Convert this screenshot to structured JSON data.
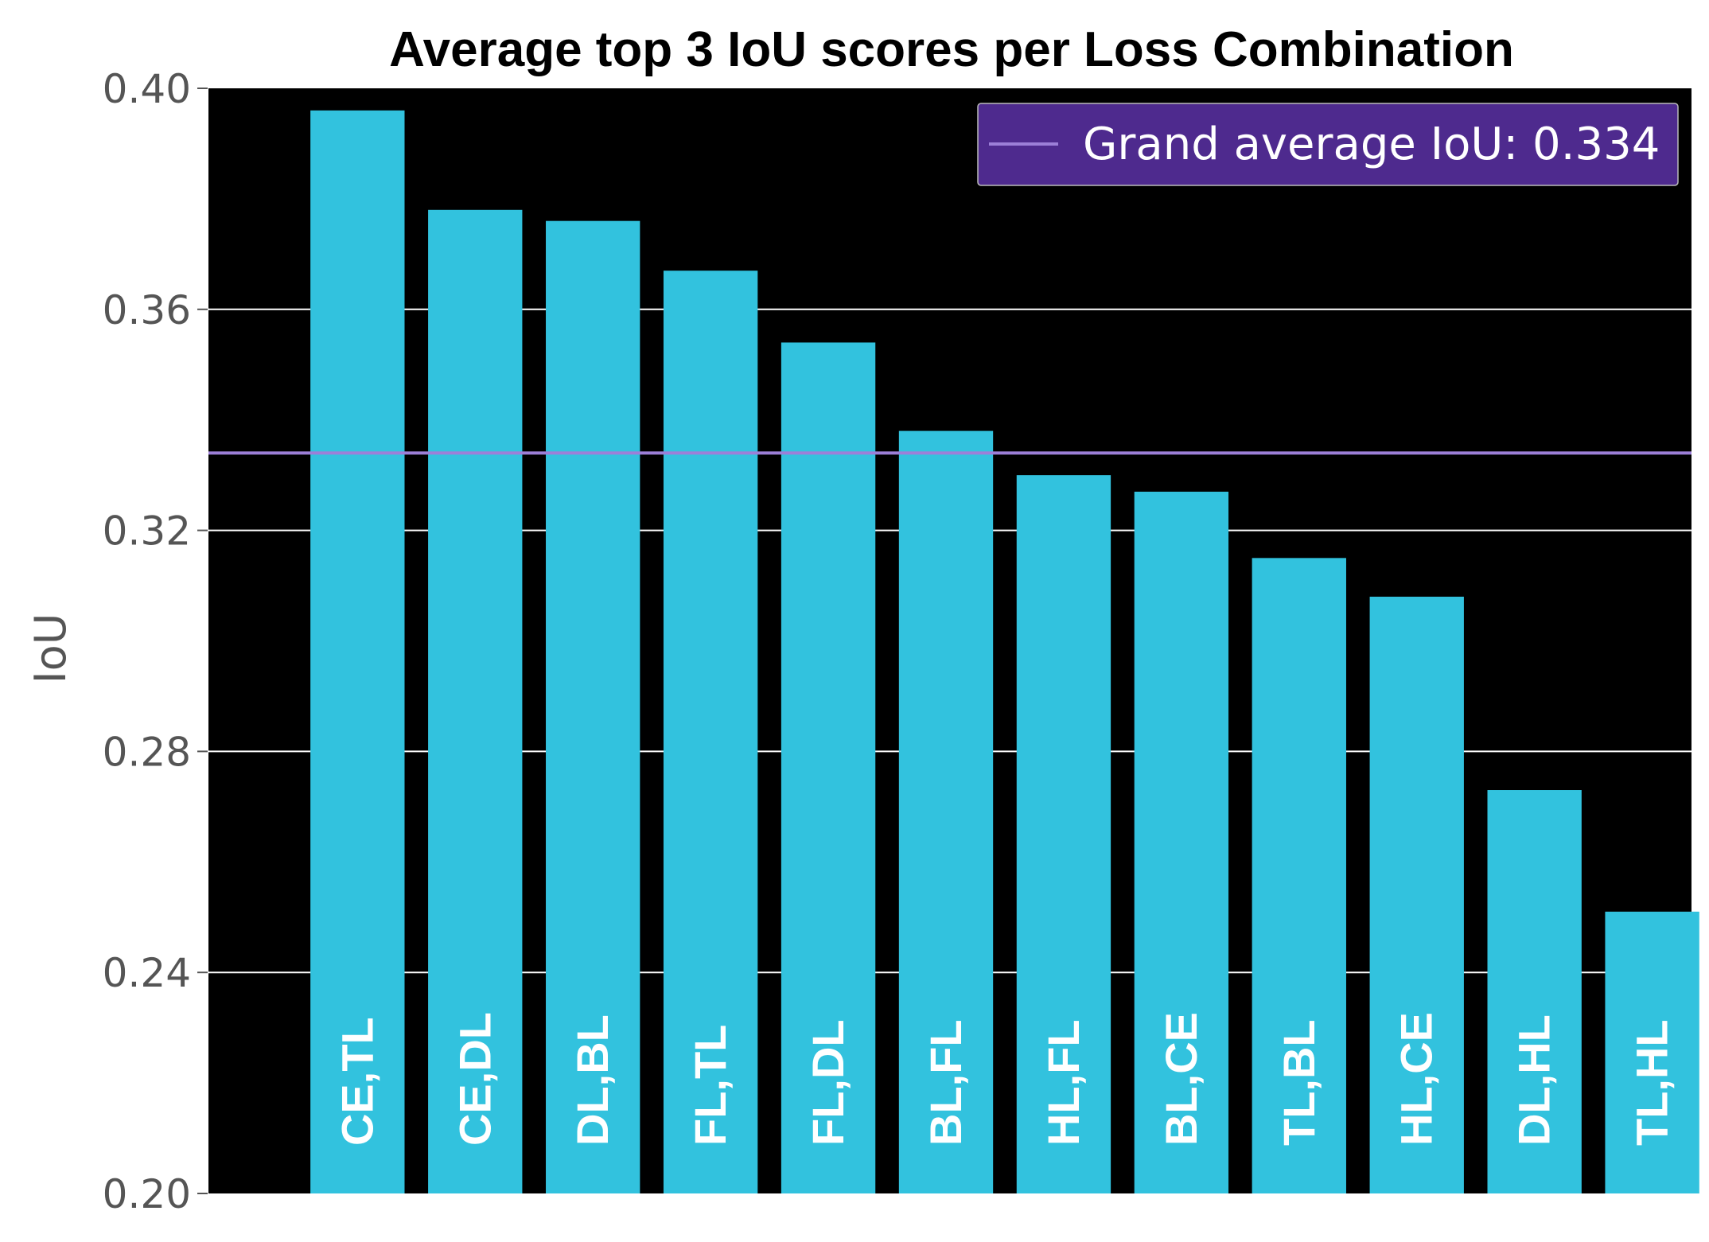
{
  "chart_data": {
    "type": "bar",
    "title": "Average top 3 IoU scores per Loss Combination",
    "xlabel": "",
    "ylabel": "IoU",
    "ylim": [
      0.2,
      0.4
    ],
    "yticks": [
      "0.20",
      "0.24",
      "0.28",
      "0.32",
      "0.36",
      "0.40"
    ],
    "categories": [
      "CE,TL",
      "CE,DL",
      "DL,BL",
      "FL,TL",
      "FL,DL",
      "BL,FL",
      "HL,FL",
      "BL,CE",
      "TL,BL",
      "HL,CE",
      "DL,HL",
      "TL,HL"
    ],
    "values": [
      0.396,
      0.378,
      0.376,
      0.367,
      0.354,
      0.338,
      0.33,
      0.327,
      0.315,
      0.308,
      0.273,
      0.251
    ],
    "reference_line": {
      "label": "Grand average IoU: 0.334",
      "value": 0.334
    },
    "grid": "horizontal",
    "legend_position": "top-right",
    "colors": {
      "bar": "#32C2DE",
      "background": "#000000",
      "reference_line": "#9C7FD8",
      "legend_fill": "#4E2A8E",
      "grid": "#ffffff"
    }
  }
}
